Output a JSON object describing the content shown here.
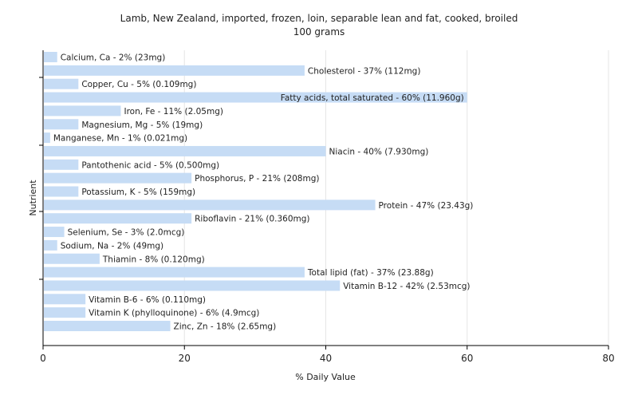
{
  "chart_data": {
    "type": "bar",
    "orientation": "horizontal",
    "title": "Lamb, New Zealand, imported, frozen, loin, separable lean and fat, cooked, broiled",
    "subtitle": "100 grams",
    "xlabel": "% Daily Value",
    "ylabel": "Nutrient",
    "xlim": [
      0,
      80
    ],
    "xticks": [
      "0",
      "20",
      "40",
      "60",
      "80"
    ],
    "grid": true,
    "bar_color": "#c6dcf5",
    "categories": [
      "Calcium, Ca",
      "Cholesterol",
      "Copper, Cu",
      "Fatty acids, total saturated",
      "Iron, Fe",
      "Magnesium, Mg",
      "Manganese, Mn",
      "Niacin",
      "Pantothenic acid",
      "Phosphorus, P",
      "Potassium, K",
      "Protein",
      "Riboflavin",
      "Selenium, Se",
      "Sodium, Na",
      "Thiamin",
      "Total lipid (fat)",
      "Vitamin B-12",
      "Vitamin B-6",
      "Vitamin K (phylloquinone)",
      "Zinc, Zn"
    ],
    "values": [
      2,
      37,
      5,
      60,
      11,
      5,
      1,
      40,
      5,
      21,
      5,
      47,
      21,
      3,
      2,
      8,
      37,
      42,
      6,
      6,
      18
    ],
    "labels": [
      "Calcium, Ca - 2% (23mg)",
      "Cholesterol - 37% (112mg)",
      "Copper, Cu - 5% (0.109mg)",
      "Fatty acids, total saturated - 60% (11.960g)",
      "Iron, Fe - 11% (2.05mg)",
      "Magnesium, Mg - 5% (19mg)",
      "Manganese, Mn - 1% (0.021mg)",
      "Niacin - 40% (7.930mg)",
      "Pantothenic acid - 5% (0.500mg)",
      "Phosphorus, P - 21% (208mg)",
      "Potassium, K - 5% (159mg)",
      "Protein - 47% (23.43g)",
      "Riboflavin - 21% (0.360mg)",
      "Selenium, Se - 3% (2.0mcg)",
      "Sodium, Na - 2% (49mg)",
      "Thiamin - 8% (0.120mg)",
      "Total lipid (fat) - 37% (23.88g)",
      "Vitamin B-12 - 42% (2.53mcg)",
      "Vitamin B-6 - 6% (0.110mg)",
      "Vitamin K (phylloquinone) - 6% (4.9mcg)",
      "Zinc, Zn - 18% (2.65mg)"
    ]
  }
}
